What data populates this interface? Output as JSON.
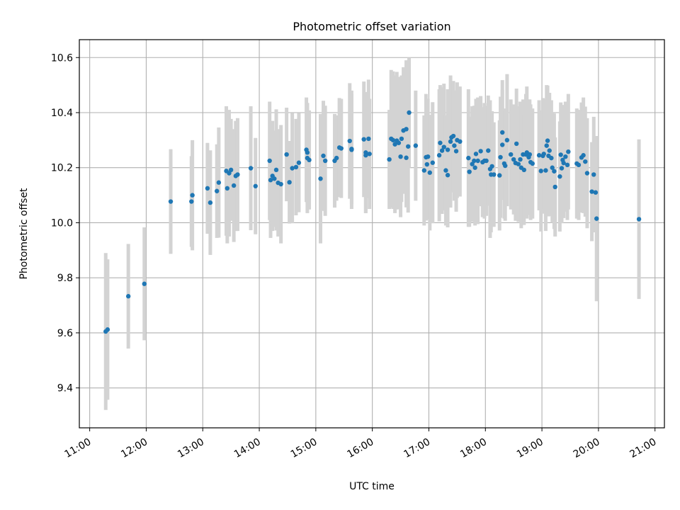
{
  "chart_data": {
    "type": "scatter",
    "title": "Photometric offset variation",
    "xlabel": "UTC time",
    "ylabel": "Photometric offset",
    "x_ticks": [
      "11:00",
      "12:00",
      "13:00",
      "14:00",
      "15:00",
      "16:00",
      "17:00",
      "18:00",
      "19:00",
      "20:00",
      "21:00"
    ],
    "y_ticks": [
      "9.4",
      "9.6",
      "9.8",
      "10.0",
      "10.2",
      "10.4",
      "10.6"
    ],
    "xlim": [
      "10:49",
      "21:10"
    ],
    "ylim": [
      9.255,
      10.665
    ],
    "grid": true,
    "colors": {
      "point": "#1f77b4",
      "errorbar": "#d3d3d3",
      "grid": "#b0b0b0"
    },
    "series": [
      {
        "points": [
          {
            "x": "11:17",
            "y": 9.605,
            "err": 0.285
          },
          {
            "x": "11:19",
            "y": 9.612,
            "err": 0.255
          },
          {
            "x": "11:41",
            "y": 9.733,
            "err": 0.19
          },
          {
            "x": "11:58",
            "y": 9.778,
            "err": 0.205
          },
          {
            "x": "12:26",
            "y": 10.077,
            "err": 0.19
          },
          {
            "x": "12:48",
            "y": 10.077,
            "err": 0.165
          },
          {
            "x": "12:49",
            "y": 10.1,
            "err": 0.2
          },
          {
            "x": "13:05",
            "y": 10.125,
            "err": 0.165
          },
          {
            "x": "13:08",
            "y": 10.073,
            "err": 0.19
          },
          {
            "x": "13:15",
            "y": 10.115,
            "err": 0.17
          },
          {
            "x": "13:17",
            "y": 10.146,
            "err": 0.2
          },
          {
            "x": "13:25",
            "y": 10.188,
            "err": 0.235
          },
          {
            "x": "13:26",
            "y": 10.125,
            "err": 0.2
          },
          {
            "x": "13:28",
            "y": 10.18,
            "err": 0.23
          },
          {
            "x": "13:30",
            "y": 10.192,
            "err": 0.185
          },
          {
            "x": "13:33",
            "y": 10.135,
            "err": 0.205
          },
          {
            "x": "13:35",
            "y": 10.17,
            "err": 0.2
          },
          {
            "x": "13:37",
            "y": 10.175,
            "err": 0.205
          },
          {
            "x": "13:51",
            "y": 10.198,
            "err": 0.225
          },
          {
            "x": "13:56",
            "y": 10.133,
            "err": 0.175
          },
          {
            "x": "14:11",
            "y": 10.225,
            "err": 0.215
          },
          {
            "x": "14:12",
            "y": 10.155,
            "err": 0.21
          },
          {
            "x": "14:14",
            "y": 10.17,
            "err": 0.2
          },
          {
            "x": "14:16",
            "y": 10.16,
            "err": 0.175
          },
          {
            "x": "14:18",
            "y": 10.192,
            "err": 0.22
          },
          {
            "x": "14:20",
            "y": 10.145,
            "err": 0.195
          },
          {
            "x": "14:23",
            "y": 10.14,
            "err": 0.215
          },
          {
            "x": "14:29",
            "y": 10.248,
            "err": 0.17
          },
          {
            "x": "14:32",
            "y": 10.147,
            "err": 0.15
          },
          {
            "x": "14:35",
            "y": 10.198,
            "err": 0.2
          },
          {
            "x": "14:39",
            "y": 10.202,
            "err": 0.175
          },
          {
            "x": "14:42",
            "y": 10.218,
            "err": 0.18
          },
          {
            "x": "14:50",
            "y": 10.265,
            "err": 0.19
          },
          {
            "x": "14:51",
            "y": 10.255,
            "err": 0.18
          },
          {
            "x": "14:51",
            "y": 10.235,
            "err": 0.2
          },
          {
            "x": "14:53",
            "y": 10.228,
            "err": 0.18
          },
          {
            "x": "15:05",
            "y": 10.16,
            "err": 0.235
          },
          {
            "x": "15:08",
            "y": 10.243,
            "err": 0.2
          },
          {
            "x": "15:10",
            "y": 10.225,
            "err": 0.2
          },
          {
            "x": "15:20",
            "y": 10.225,
            "err": 0.17
          },
          {
            "x": "15:22",
            "y": 10.235,
            "err": 0.155
          },
          {
            "x": "15:25",
            "y": 10.273,
            "err": 0.18
          },
          {
            "x": "15:27",
            "y": 10.27,
            "err": 0.18
          },
          {
            "x": "15:36",
            "y": 10.297,
            "err": 0.21
          },
          {
            "x": "15:38",
            "y": 10.268,
            "err": 0.2
          },
          {
            "x": "15:38",
            "y": 10.265,
            "err": 0.215
          },
          {
            "x": "15:51",
            "y": 10.303,
            "err": 0.21
          },
          {
            "x": "15:53",
            "y": 10.255,
            "err": 0.22
          },
          {
            "x": "15:53",
            "y": 10.245,
            "err": 0.21
          },
          {
            "x": "15:56",
            "y": 10.305,
            "err": 0.215
          },
          {
            "x": "15:57",
            "y": 10.25,
            "err": 0.2
          },
          {
            "x": "16:18",
            "y": 10.23,
            "err": 0.18
          },
          {
            "x": "16:20",
            "y": 10.305,
            "err": 0.25
          },
          {
            "x": "16:22",
            "y": 10.3,
            "err": 0.25
          },
          {
            "x": "16:24",
            "y": 10.285,
            "err": 0.25
          },
          {
            "x": "16:26",
            "y": 10.298,
            "err": 0.25
          },
          {
            "x": "16:28",
            "y": 10.29,
            "err": 0.24
          },
          {
            "x": "16:30",
            "y": 10.24,
            "err": 0.22
          },
          {
            "x": "16:31",
            "y": 10.305,
            "err": 0.23
          },
          {
            "x": "16:33",
            "y": 10.335,
            "err": 0.23
          },
          {
            "x": "16:36",
            "y": 10.34,
            "err": 0.25
          },
          {
            "x": "16:36",
            "y": 10.236,
            "err": 0.18
          },
          {
            "x": "16:38",
            "y": 10.277,
            "err": 0.24
          },
          {
            "x": "16:39",
            "y": 10.4,
            "err": 0.2
          },
          {
            "x": "16:46",
            "y": 10.28,
            "err": 0.2
          },
          {
            "x": "16:55",
            "y": 10.19,
            "err": 0.2
          },
          {
            "x": "16:57",
            "y": 10.238,
            "err": 0.23
          },
          {
            "x": "16:58",
            "y": 10.212,
            "err": 0.2
          },
          {
            "x": "16:59",
            "y": 10.24,
            "err": 0.21
          },
          {
            "x": "17:01",
            "y": 10.182,
            "err": 0.21
          },
          {
            "x": "17:04",
            "y": 10.218,
            "err": 0.22
          },
          {
            "x": "17:11",
            "y": 10.245,
            "err": 0.24
          },
          {
            "x": "17:12",
            "y": 10.29,
            "err": 0.21
          },
          {
            "x": "17:14",
            "y": 10.262,
            "err": 0.23
          },
          {
            "x": "17:16",
            "y": 10.275,
            "err": 0.23
          },
          {
            "x": "17:18",
            "y": 10.19,
            "err": 0.2
          },
          {
            "x": "17:20",
            "y": 10.173,
            "err": 0.19
          },
          {
            "x": "17:20",
            "y": 10.265,
            "err": 0.22
          },
          {
            "x": "17:23",
            "y": 10.295,
            "err": 0.24
          },
          {
            "x": "17:24",
            "y": 10.31,
            "err": 0.2
          },
          {
            "x": "17:26",
            "y": 10.315,
            "err": 0.2
          },
          {
            "x": "17:27",
            "y": 10.28,
            "err": 0.2
          },
          {
            "x": "17:29",
            "y": 10.26,
            "err": 0.22
          },
          {
            "x": "17:30",
            "y": 10.3,
            "err": 0.21
          },
          {
            "x": "17:33",
            "y": 10.295,
            "err": 0.2
          },
          {
            "x": "17:42",
            "y": 10.235,
            "err": 0.25
          },
          {
            "x": "17:43",
            "y": 10.185,
            "err": 0.2
          },
          {
            "x": "17:46",
            "y": 10.213,
            "err": 0.21
          },
          {
            "x": "17:48",
            "y": 10.225,
            "err": 0.2
          },
          {
            "x": "17:49",
            "y": 10.2,
            "err": 0.21
          },
          {
            "x": "17:50",
            "y": 10.25,
            "err": 0.2
          },
          {
            "x": "17:52",
            "y": 10.225,
            "err": 0.23
          },
          {
            "x": "17:55",
            "y": 10.26,
            "err": 0.2
          },
          {
            "x": "17:57",
            "y": 10.22,
            "err": 0.2
          },
          {
            "x": "17:59",
            "y": 10.225,
            "err": 0.21
          },
          {
            "x": "18:01",
            "y": 10.225,
            "err": 0.2
          },
          {
            "x": "18:03",
            "y": 10.262,
            "err": 0.2
          },
          {
            "x": "18:05",
            "y": 10.195,
            "err": 0.25
          },
          {
            "x": "18:06",
            "y": 10.175,
            "err": 0.21
          },
          {
            "x": "18:07",
            "y": 10.205,
            "err": 0.2
          },
          {
            "x": "18:09",
            "y": 10.175,
            "err": 0.19
          },
          {
            "x": "18:15",
            "y": 10.172,
            "err": 0.2
          },
          {
            "x": "18:16",
            "y": 10.238,
            "err": 0.22
          },
          {
            "x": "18:18",
            "y": 10.328,
            "err": 0.19
          },
          {
            "x": "18:18",
            "y": 10.283,
            "err": 0.2
          },
          {
            "x": "18:20",
            "y": 10.215,
            "err": 0.2
          },
          {
            "x": "18:21",
            "y": 10.207,
            "err": 0.2
          },
          {
            "x": "18:23",
            "y": 10.3,
            "err": 0.24
          },
          {
            "x": "18:27",
            "y": 10.248,
            "err": 0.2
          },
          {
            "x": "18:30",
            "y": 10.23,
            "err": 0.2
          },
          {
            "x": "18:32",
            "y": 10.217,
            "err": 0.21
          },
          {
            "x": "18:33",
            "y": 10.287,
            "err": 0.2
          },
          {
            "x": "18:35",
            "y": 10.213,
            "err": 0.21
          },
          {
            "x": "18:37",
            "y": 10.23,
            "err": 0.21
          },
          {
            "x": "18:38",
            "y": 10.2,
            "err": 0.22
          },
          {
            "x": "18:40",
            "y": 10.248,
            "err": 0.2
          },
          {
            "x": "18:41",
            "y": 10.192,
            "err": 0.2
          },
          {
            "x": "18:43",
            "y": 10.248,
            "err": 0.22
          },
          {
            "x": "18:44",
            "y": 10.255,
            "err": 0.24
          },
          {
            "x": "18:46",
            "y": 10.238,
            "err": 0.21
          },
          {
            "x": "18:47",
            "y": 10.248,
            "err": 0.2
          },
          {
            "x": "18:48",
            "y": 10.22,
            "err": 0.21
          },
          {
            "x": "18:50",
            "y": 10.215,
            "err": 0.2
          },
          {
            "x": "18:57",
            "y": 10.245,
            "err": 0.2
          },
          {
            "x": "18:59",
            "y": 10.188,
            "err": 0.22
          },
          {
            "x": "19:01",
            "y": 10.243,
            "err": 0.21
          },
          {
            "x": "19:02",
            "y": 10.25,
            "err": 0.2
          },
          {
            "x": "19:04",
            "y": 10.19,
            "err": 0.22
          },
          {
            "x": "19:05",
            "y": 10.28,
            "err": 0.22
          },
          {
            "x": "19:06",
            "y": 10.298,
            "err": 0.2
          },
          {
            "x": "19:07",
            "y": 10.243,
            "err": 0.22
          },
          {
            "x": "19:08",
            "y": 10.262,
            "err": 0.21
          },
          {
            "x": "19:10",
            "y": 10.235,
            "err": 0.21
          },
          {
            "x": "19:11",
            "y": 10.2,
            "err": 0.2
          },
          {
            "x": "19:13",
            "y": 10.187,
            "err": 0.21
          },
          {
            "x": "19:14",
            "y": 10.13,
            "err": 0.18
          },
          {
            "x": "19:19",
            "y": 10.168,
            "err": 0.2
          },
          {
            "x": "19:20",
            "y": 10.247,
            "err": 0.19
          },
          {
            "x": "19:21",
            "y": 10.198,
            "err": 0.2
          },
          {
            "x": "19:22",
            "y": 10.228,
            "err": 0.2
          },
          {
            "x": "19:23",
            "y": 10.217,
            "err": 0.2
          },
          {
            "x": "19:25",
            "y": 10.24,
            "err": 0.2
          },
          {
            "x": "19:27",
            "y": 10.21,
            "err": 0.2
          },
          {
            "x": "19:28",
            "y": 10.258,
            "err": 0.21
          },
          {
            "x": "19:37",
            "y": 10.215,
            "err": 0.2
          },
          {
            "x": "19:39",
            "y": 10.21,
            "err": 0.2
          },
          {
            "x": "19:42",
            "y": 10.237,
            "err": 0.2
          },
          {
            "x": "19:44",
            "y": 10.245,
            "err": 0.21
          },
          {
            "x": "19:46",
            "y": 10.222,
            "err": 0.2
          },
          {
            "x": "19:48",
            "y": 10.18,
            "err": 0.2
          },
          {
            "x": "19:53",
            "y": 10.113,
            "err": 0.18
          },
          {
            "x": "19:55",
            "y": 10.175,
            "err": 0.21
          },
          {
            "x": "19:57",
            "y": 10.11,
            "err": 0.1
          },
          {
            "x": "19:58",
            "y": 10.015,
            "err": 0.3
          },
          {
            "x": "20:43",
            "y": 10.013,
            "err": 0.29
          }
        ]
      }
    ]
  }
}
